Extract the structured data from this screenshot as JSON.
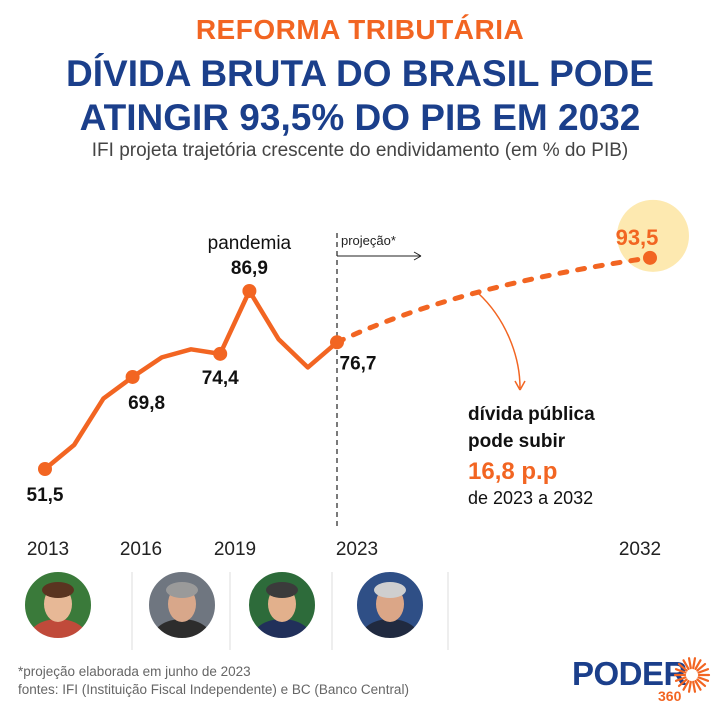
{
  "header": {
    "kicker": "REFORMA TRIBUTÁRIA",
    "title_line1": "DÍVIDA BRUTA DO BRASIL PODE",
    "title_line2": "ATINGIR 93,5% DO PIB EM 2032",
    "subtitle": "IFI projeta trajetória crescente do endividamento (em % do PIB)"
  },
  "colors": {
    "accent": "#f26522",
    "title": "#1b3f8b",
    "highlight": "#fde9b0"
  },
  "chart_data": {
    "type": "line",
    "x": [
      2013,
      2014,
      2015,
      2016,
      2017,
      2018,
      2019,
      2020,
      2021,
      2022,
      2023
    ],
    "values": [
      51.5,
      56.3,
      65.5,
      69.8,
      73.7,
      75.3,
      74.4,
      86.9,
      77.3,
      71.7,
      76.7
    ],
    "projection": {
      "x": [
        2023,
        2032
      ],
      "values": [
        76.7,
        93.5
      ]
    },
    "labels": [
      {
        "x": 2013,
        "text": "51,5"
      },
      {
        "x": 2016,
        "text": "69,8"
      },
      {
        "x": 2019,
        "text": "74,4"
      },
      {
        "x": 2020,
        "text": "86,9"
      },
      {
        "x": 2023,
        "text": "76,7"
      },
      {
        "x": 2032,
        "text": "93,5"
      }
    ],
    "x_ticks": [
      "2013",
      "2016",
      "2019",
      "2023",
      "2032"
    ],
    "annotations": {
      "pandemic": "pandemia",
      "projection": "projeção*",
      "note_line1": "dívida pública",
      "note_line2": "pode subir",
      "note_value": "16,8 p.p",
      "note_line3": "de 2023 a 2032"
    }
  },
  "presidents": [
    "portrait-1",
    "portrait-2",
    "portrait-3",
    "portrait-4"
  ],
  "footer": {
    "note": "*projeção elaborada em junho de 2023",
    "sources": "fontes: IFI (Instituição Fiscal Independente) e BC (Banco Central)",
    "logo_word": "PODER",
    "logo_num": "360"
  }
}
